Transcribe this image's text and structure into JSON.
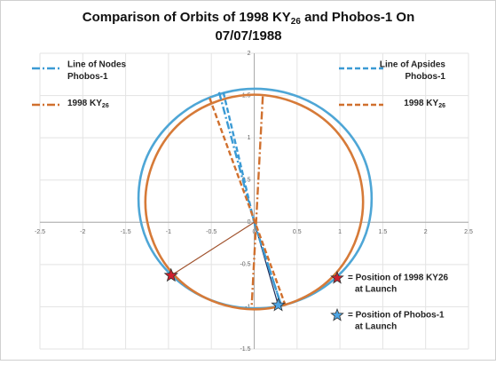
{
  "chart_data": {
    "type": "scatter",
    "title": [
      [
        "Comparison of Orbits of 1998 KY",
        "26",
        " and Phobos-1 On"
      ],
      [
        "07/07/1988"
      ]
    ],
    "xlim": [
      -2.5,
      2.5
    ],
    "ylim": [
      -1.5,
      2
    ],
    "xticks": [
      -2.5,
      -2,
      -1.5,
      -1,
      -0.5,
      0,
      0.5,
      1,
      1.5,
      2,
      2.5
    ],
    "yticks": [
      -1.5,
      -1,
      -0.5,
      0,
      0.5,
      1,
      1.5,
      2
    ],
    "grid": true,
    "orbits": [
      {
        "color": "#4ea6d6",
        "x": [
          1.37,
          1.27,
          0.97,
          0.53,
          0.01,
          -0.51,
          -0.95,
          -1.25,
          -1.35,
          -1.25,
          -0.95,
          -0.51,
          0.01,
          0.53,
          0.97,
          1.27
        ],
        "y": [
          0.28,
          0.78,
          1.2,
          1.48,
          1.58,
          1.48,
          1.2,
          0.78,
          0.28,
          -0.22,
          -0.64,
          -0.92,
          -1.02,
          -0.92,
          -0.64,
          -0.22
        ]
      },
      {
        "color": "#d67a38",
        "x": [
          1.27,
          1.17,
          0.9,
          0.49,
          0,
          -0.49,
          -0.9,
          -1.17,
          -1.27,
          -1.17,
          -0.9,
          -0.49,
          0,
          0.49,
          0.9,
          1.17
        ],
        "y": [
          0.24,
          0.73,
          1.14,
          1.41,
          1.51,
          1.41,
          1.14,
          0.73,
          0.24,
          -0.25,
          -0.66,
          -0.93,
          -1.03,
          -0.93,
          -0.66,
          -0.25
        ]
      }
    ],
    "groups": [
      {
        "title": "Line of Nodes",
        "legend": "top-left",
        "dash": "9 3 2 3",
        "series": [
          {
            "name": "Phobos-1",
            "name_sub": "",
            "color": "#3b9ad4",
            "x": [
              -0.41,
              0,
              0.32
            ],
            "y": [
              1.54,
              0,
              -1.0
            ]
          },
          {
            "name": "1998 KY",
            "name_sub": "26",
            "color": "#d0702e",
            "x": [
              0.1,
              -0.03
            ],
            "y": [
              1.49,
              -1.0
            ]
          }
        ]
      },
      {
        "title": "Line of Apsides",
        "legend": "top-right",
        "dash": "6 3",
        "series": [
          {
            "name": "Phobos-1",
            "name_sub": "",
            "color": "#3b9ad4",
            "x": [
              -0.36,
              0,
              0.32
            ],
            "y": [
              1.54,
              0,
              -1.0
            ]
          },
          {
            "name": "1998 KY",
            "name_sub": "26",
            "color": "#d0702e",
            "x": [
              -0.52,
              0.37
            ],
            "y": [
              1.47,
              -1.0
            ]
          }
        ]
      }
    ],
    "connectors": [
      {
        "color": "#a0522d",
        "x": [
          0,
          -0.97
        ],
        "y": [
          0,
          -0.63
        ]
      },
      {
        "color": "#1f2d5a",
        "x": [
          0,
          0.28
        ],
        "y": [
          0,
          -0.98
        ]
      }
    ],
    "markers": [
      {
        "lines": [
          "= Position of 1998 KY26",
          "at Launch"
        ],
        "color": "#d0202e",
        "x": -0.97,
        "y": -0.63
      },
      {
        "lines": [
          "= Position of Phobos-1",
          "at Launch"
        ],
        "color": "#4ea6e6",
        "x": 0.28,
        "y": -0.98
      }
    ]
  }
}
